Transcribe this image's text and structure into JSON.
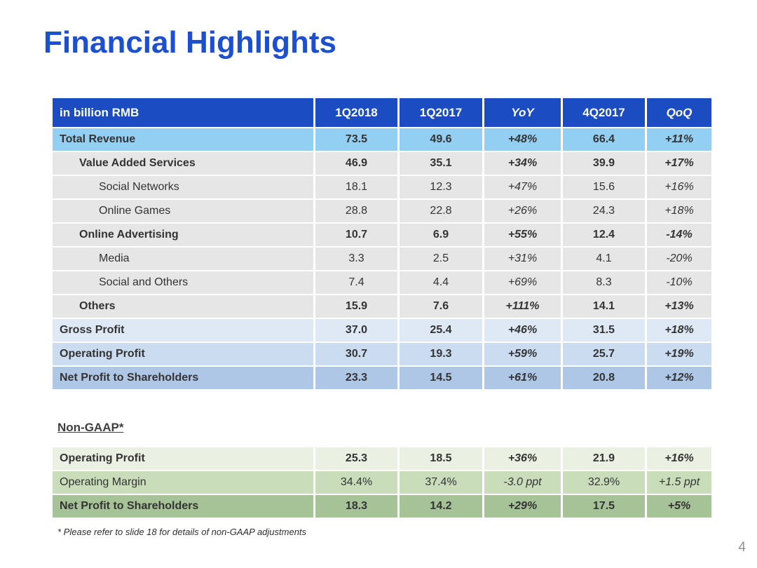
{
  "slide": {
    "title": "Financial Highlights",
    "footnote": "* Please refer to slide 18 for details of non-GAAP adjustments",
    "page_number": "4"
  },
  "colors": {
    "title": "#1D50D0",
    "header_bg": "#1B4CC1",
    "header_text": "#FFFFFF",
    "row_total_revenue": "#93CFF2",
    "row_gray": "#E6E6E6",
    "row_gross_profit": "#DFE9F6",
    "row_operating_profit": "#CBDBF0",
    "row_net_profit": "#AFC7E6",
    "row_nongaap_operating_profit": "#EAF1E3",
    "row_nongaap_operating_margin": "#C9DDBB",
    "row_nongaap_net_profit": "#A6C297",
    "page_number": "#909090"
  },
  "main_table": {
    "headers": [
      "in billion RMB",
      "1Q2018",
      "1Q2017",
      "YoY",
      "4Q2017",
      "QoQ"
    ],
    "rows": [
      {
        "label": "Total Revenue",
        "indent": 0,
        "bold": true,
        "bg": "#93CFF2",
        "values": [
          "73.5",
          "49.6",
          "+48%",
          "66.4",
          "+11%"
        ]
      },
      {
        "label": "Value Added Services",
        "indent": 1,
        "bold": true,
        "bg": "#E6E6E6",
        "values": [
          "46.9",
          "35.1",
          "+34%",
          "39.9",
          "+17%"
        ]
      },
      {
        "label": "Social Networks",
        "indent": 2,
        "bold": false,
        "bg": "#E6E6E6",
        "values": [
          "18.1",
          "12.3",
          "+47%",
          "15.6",
          "+16%"
        ]
      },
      {
        "label": "Online Games",
        "indent": 2,
        "bold": false,
        "bg": "#E6E6E6",
        "values": [
          "28.8",
          "22.8",
          "+26%",
          "24.3",
          "+18%"
        ]
      },
      {
        "label": "Online Advertising",
        "indent": 1,
        "bold": true,
        "bg": "#E6E6E6",
        "values": [
          "10.7",
          "6.9",
          "+55%",
          "12.4",
          "-14%"
        ]
      },
      {
        "label": "Media",
        "indent": 2,
        "bold": false,
        "bg": "#E6E6E6",
        "values": [
          "3.3",
          "2.5",
          "+31%",
          "4.1",
          "-20%"
        ]
      },
      {
        "label": "Social and Others",
        "indent": 2,
        "bold": false,
        "bg": "#E6E6E6",
        "values": [
          "7.4",
          "4.4",
          "+69%",
          "8.3",
          "-10%"
        ]
      },
      {
        "label": "Others",
        "indent": 1,
        "bold": true,
        "bg": "#E6E6E6",
        "values": [
          "15.9",
          "7.6",
          "+111%",
          "14.1",
          "+13%"
        ]
      },
      {
        "label": "Gross Profit",
        "indent": 0,
        "bold": true,
        "bg": "#DFE9F6",
        "values": [
          "37.0",
          "25.4",
          "+46%",
          "31.5",
          "+18%"
        ]
      },
      {
        "label": "Operating Profit",
        "indent": 0,
        "bold": true,
        "bg": "#CBDBF0",
        "values": [
          "30.7",
          "19.3",
          "+59%",
          "25.7",
          "+19%"
        ]
      },
      {
        "label": "Net Profit to Shareholders",
        "indent": 0,
        "bold": true,
        "bg": "#AFC7E6",
        "values": [
          "23.3",
          "14.5",
          "+61%",
          "20.8",
          "+12%"
        ]
      }
    ]
  },
  "non_gaap_table": {
    "section_label": "Non-GAAP*",
    "rows": [
      {
        "label": "Operating Profit",
        "indent": 0,
        "bold": true,
        "bg": "#EAF1E3",
        "values": [
          "25.3",
          "18.5",
          "+36%",
          "21.9",
          "+16%"
        ]
      },
      {
        "label": "Operating Margin",
        "indent": 0,
        "bold": false,
        "bg": "#C9DDBB",
        "values": [
          "34.4%",
          "37.4%",
          "-3.0 ppt",
          "32.9%",
          "+1.5 ppt"
        ]
      },
      {
        "label": "Net Profit to Shareholders",
        "indent": 0,
        "bold": true,
        "bg": "#A6C297",
        "values": [
          "18.3",
          "14.2",
          "+29%",
          "17.5",
          "+5%"
        ]
      }
    ]
  }
}
